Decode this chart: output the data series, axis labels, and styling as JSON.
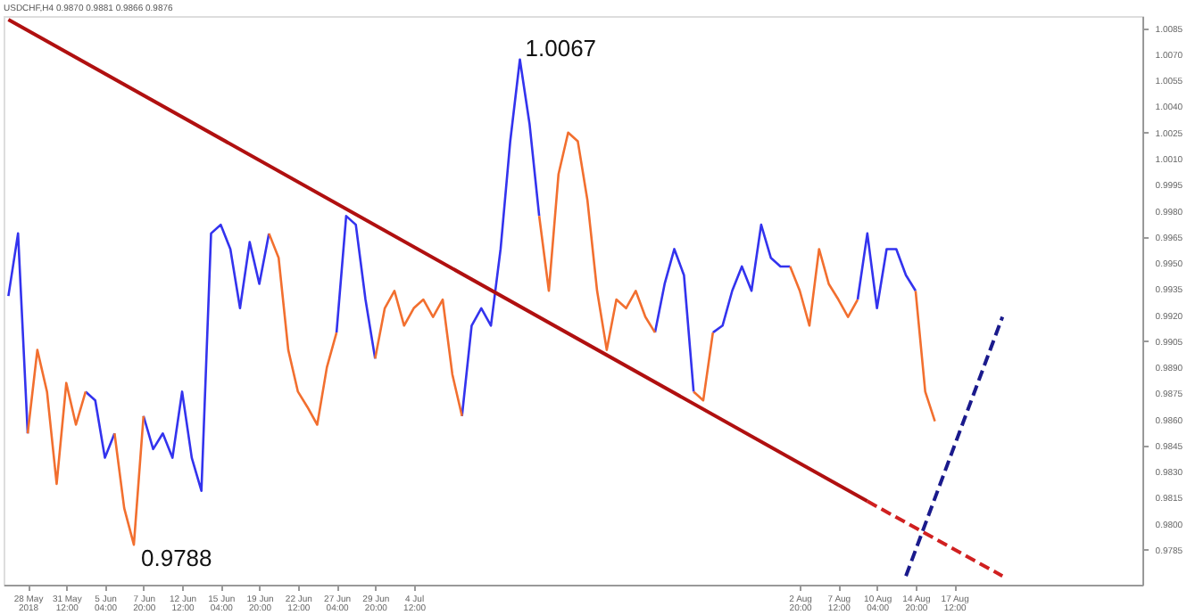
{
  "chart_data": {
    "type": "line",
    "title": "USDCHF,H4  0.9870 0.9881 0.9866 0.9876",
    "categories": [
      null,
      null,
      "28 May 2018",
      null,
      null,
      null,
      "31 May 12:00",
      null,
      null,
      null,
      "5 Jun 04:00",
      null,
      null,
      null,
      "7 Jun 20:00",
      null,
      null,
      null,
      "12 Jun 12:00",
      null,
      null,
      null,
      "15 Jun 04:00",
      null,
      null,
      null,
      "19 Jun 20:00",
      null,
      null,
      null,
      "22 Jun 12:00",
      null,
      null,
      null,
      "27 Jun 04:00",
      null,
      null,
      null,
      "29 Jun 20:00",
      null,
      null,
      null,
      "4 Jul 12:00",
      null,
      null,
      null,
      null,
      null,
      null,
      null,
      null,
      null,
      null,
      null,
      null,
      null,
      null,
      null,
      null,
      null,
      null,
      null,
      null,
      null,
      null,
      null,
      null,
      null,
      null,
      null,
      null,
      null,
      null,
      null,
      null,
      null,
      null,
      null,
      null,
      null,
      null,
      null,
      "2 Aug 20:00",
      null,
      null,
      null,
      "7 Aug 12:00",
      null,
      null,
      null,
      "10 Aug 04:00",
      null,
      null,
      null,
      "14 Aug 20:00",
      null,
      null,
      null,
      "17 Aug 12:00",
      null,
      null,
      null,
      null,
      null,
      null,
      null,
      null,
      null,
      null,
      null,
      null,
      null,
      null,
      null,
      null,
      null,
      null,
      null
    ],
    "series": [
      {
        "color": "#3333ee",
        "values": [
          0.9931,
          0.9967,
          0.9852,
          null,
          null,
          null,
          null,
          null,
          0.9876,
          0.9871,
          0.9838,
          0.9852,
          null,
          null,
          0.9862,
          0.9843,
          0.9852,
          0.9838,
          0.9876,
          0.9838,
          0.9819,
          0.9967,
          0.9972,
          0.9958,
          0.9924,
          0.9962,
          0.9938,
          0.9967,
          null,
          null,
          null,
          null,
          null,
          null,
          0.991,
          0.9977,
          0.9972,
          0.9929,
          0.9895,
          null,
          null,
          null,
          null,
          null,
          null,
          null,
          null,
          0.9862,
          0.9914,
          0.9924,
          0.9914,
          0.9958,
          1.002,
          1.0067,
          1.003,
          0.9977,
          null,
          null,
          null,
          null,
          null,
          null,
          null,
          null,
          null,
          null,
          null,
          0.991,
          0.9938,
          0.9958,
          0.9943,
          0.9876,
          null,
          0.991,
          0.9914,
          0.9934,
          0.9948,
          0.9934,
          0.9972,
          0.9953,
          0.9948,
          0.9948,
          null,
          null,
          null,
          null,
          null,
          null,
          0.9929,
          0.9967,
          0.9924,
          0.9958,
          0.9958,
          0.9943,
          0.9934,
          null,
          null,
          null,
          null,
          null,
          null,
          null,
          null,
          null,
          null,
          null,
          null,
          null,
          null,
          null,
          null,
          null,
          null,
          null,
          null,
          null,
          null,
          null
        ]
      },
      {
        "color": "#f26f2f",
        "values": [
          null,
          null,
          0.9852,
          0.99,
          0.9876,
          0.9823,
          0.9881,
          0.9857,
          0.9876,
          null,
          null,
          0.9852,
          0.9809,
          0.9788,
          0.9862,
          null,
          null,
          null,
          null,
          null,
          null,
          null,
          null,
          null,
          null,
          null,
          null,
          0.9967,
          0.9953,
          0.99,
          0.9876,
          0.9867,
          0.9857,
          0.989,
          0.991,
          null,
          null,
          null,
          0.9895,
          0.9924,
          0.9934,
          0.9914,
          0.9924,
          0.9929,
          0.9919,
          0.9929,
          0.9886,
          0.9862,
          null,
          null,
          null,
          null,
          null,
          null,
          null,
          0.9977,
          0.9934,
          1.0001,
          1.0025,
          1.002,
          0.9986,
          0.9934,
          0.99,
          0.9929,
          0.9924,
          0.9934,
          0.9919,
          0.991,
          null,
          null,
          null,
          0.9876,
          0.9871,
          0.991,
          null,
          null,
          null,
          null,
          null,
          null,
          null,
          0.9948,
          0.9934,
          0.9914,
          0.9958,
          0.9938,
          0.9929,
          0.9919,
          0.9929,
          null,
          null,
          null,
          null,
          null,
          0.9934,
          0.9876,
          0.9859,
          null,
          null,
          null,
          null,
          null,
          null,
          null,
          null,
          null,
          null,
          null,
          null,
          null,
          null,
          null,
          null,
          null,
          null,
          null,
          null,
          null
        ]
      },
      {
        "color": "#b01010",
        "line_style": "solid",
        "values": [
          1.009,
          null,
          null,
          null,
          null,
          null,
          null,
          null,
          null,
          null,
          null,
          null,
          null,
          null,
          null,
          null,
          null,
          null,
          null,
          null,
          null,
          null,
          null,
          null,
          null,
          null,
          null,
          null,
          null,
          null,
          null,
          null,
          null,
          null,
          null,
          null,
          null,
          null,
          null,
          null,
          null,
          null,
          null,
          null,
          null,
          null,
          null,
          null,
          null,
          null,
          null,
          null,
          null,
          null,
          null,
          null,
          null,
          null,
          null,
          null,
          null,
          null,
          null,
          null,
          null,
          null,
          null,
          null,
          null,
          null,
          null,
          null,
          null,
          null,
          null,
          null,
          null,
          null,
          null,
          null,
          null,
          null,
          null,
          null,
          null,
          null,
          null,
          null,
          null,
          0.9813,
          null,
          null,
          null,
          null,
          null,
          null,
          null,
          null,
          null,
          null,
          null,
          null,
          null,
          null,
          null,
          null,
          null,
          null,
          null,
          null,
          null,
          null,
          null,
          null,
          null,
          null,
          null,
          null
        ]
      },
      {
        "color": "#d02020",
        "line_style": "dashed",
        "values": [
          null,
          null,
          null,
          null,
          null,
          null,
          null,
          null,
          null,
          null,
          null,
          null,
          null,
          null,
          null,
          null,
          null,
          null,
          null,
          null,
          null,
          null,
          null,
          null,
          null,
          null,
          null,
          null,
          null,
          null,
          null,
          null,
          null,
          null,
          null,
          null,
          null,
          null,
          null,
          null,
          null,
          null,
          null,
          null,
          null,
          null,
          null,
          null,
          null,
          null,
          null,
          null,
          null,
          null,
          null,
          null,
          null,
          null,
          null,
          null,
          null,
          null,
          null,
          null,
          null,
          null,
          null,
          null,
          null,
          null,
          null,
          null,
          null,
          null,
          null,
          null,
          null,
          null,
          null,
          null,
          null,
          null,
          null,
          null,
          null,
          null,
          null,
          null,
          null,
          0.9813,
          null,
          null,
          null,
          null,
          null,
          null,
          null,
          null,
          null,
          null,
          null,
          null,
          null,
          0.977,
          null,
          null,
          null,
          null,
          null,
          null,
          null,
          null,
          null,
          null,
          null,
          null,
          null,
          null
        ]
      },
      {
        "color": "#1a1a8c",
        "line_style": "dashed",
        "values": [
          null,
          null,
          null,
          null,
          null,
          null,
          null,
          null,
          null,
          null,
          null,
          null,
          null,
          null,
          null,
          null,
          null,
          null,
          null,
          null,
          null,
          null,
          null,
          null,
          null,
          null,
          null,
          null,
          null,
          null,
          null,
          null,
          null,
          null,
          null,
          null,
          null,
          null,
          null,
          null,
          null,
          null,
          null,
          null,
          null,
          null,
          null,
          null,
          null,
          null,
          null,
          null,
          null,
          null,
          null,
          null,
          null,
          null,
          null,
          null,
          null,
          null,
          null,
          null,
          null,
          null,
          null,
          null,
          null,
          null,
          null,
          null,
          null,
          null,
          null,
          null,
          null,
          null,
          null,
          null,
          null,
          null,
          null,
          null,
          null,
          null,
          null,
          null,
          null,
          null,
          null,
          null,
          null,
          0.977,
          null,
          null,
          null,
          null,
          null,
          null,
          null,
          null,
          null,
          0.9919,
          null,
          null,
          null,
          null,
          null,
          null,
          null,
          null,
          null,
          null,
          null,
          null,
          null,
          null
        ]
      }
    ],
    "annotations": [
      "1.0067",
      "0.9788"
    ],
    "ylim": [
      0.9765,
      1.0092
    ],
    "yticks": [
      0.9785,
      {
        "value": 0.98,
        "label": "0.9800"
      },
      0.9815,
      {
        "value": 0.983,
        "label": "0.9830"
      },
      0.9845,
      {
        "value": 0.986,
        "label": "0.9860"
      },
      0.9875,
      {
        "value": 0.989,
        "label": "0.9890"
      },
      0.9905,
      {
        "value": 0.992,
        "label": "0.9920"
      },
      0.9935,
      {
        "value": 0.995,
        "label": "0.9950"
      },
      0.9965,
      {
        "value": 0.998,
        "label": "0.9980"
      },
      0.9995,
      {
        "value": 1.001,
        "label": "1.0010"
      },
      1.0025,
      {
        "value": 1.004,
        "label": "1.0040"
      },
      1.0055,
      {
        "value": 1.007,
        "label": "1.0070"
      },
      1.0085
    ],
    "grid": false
  }
}
